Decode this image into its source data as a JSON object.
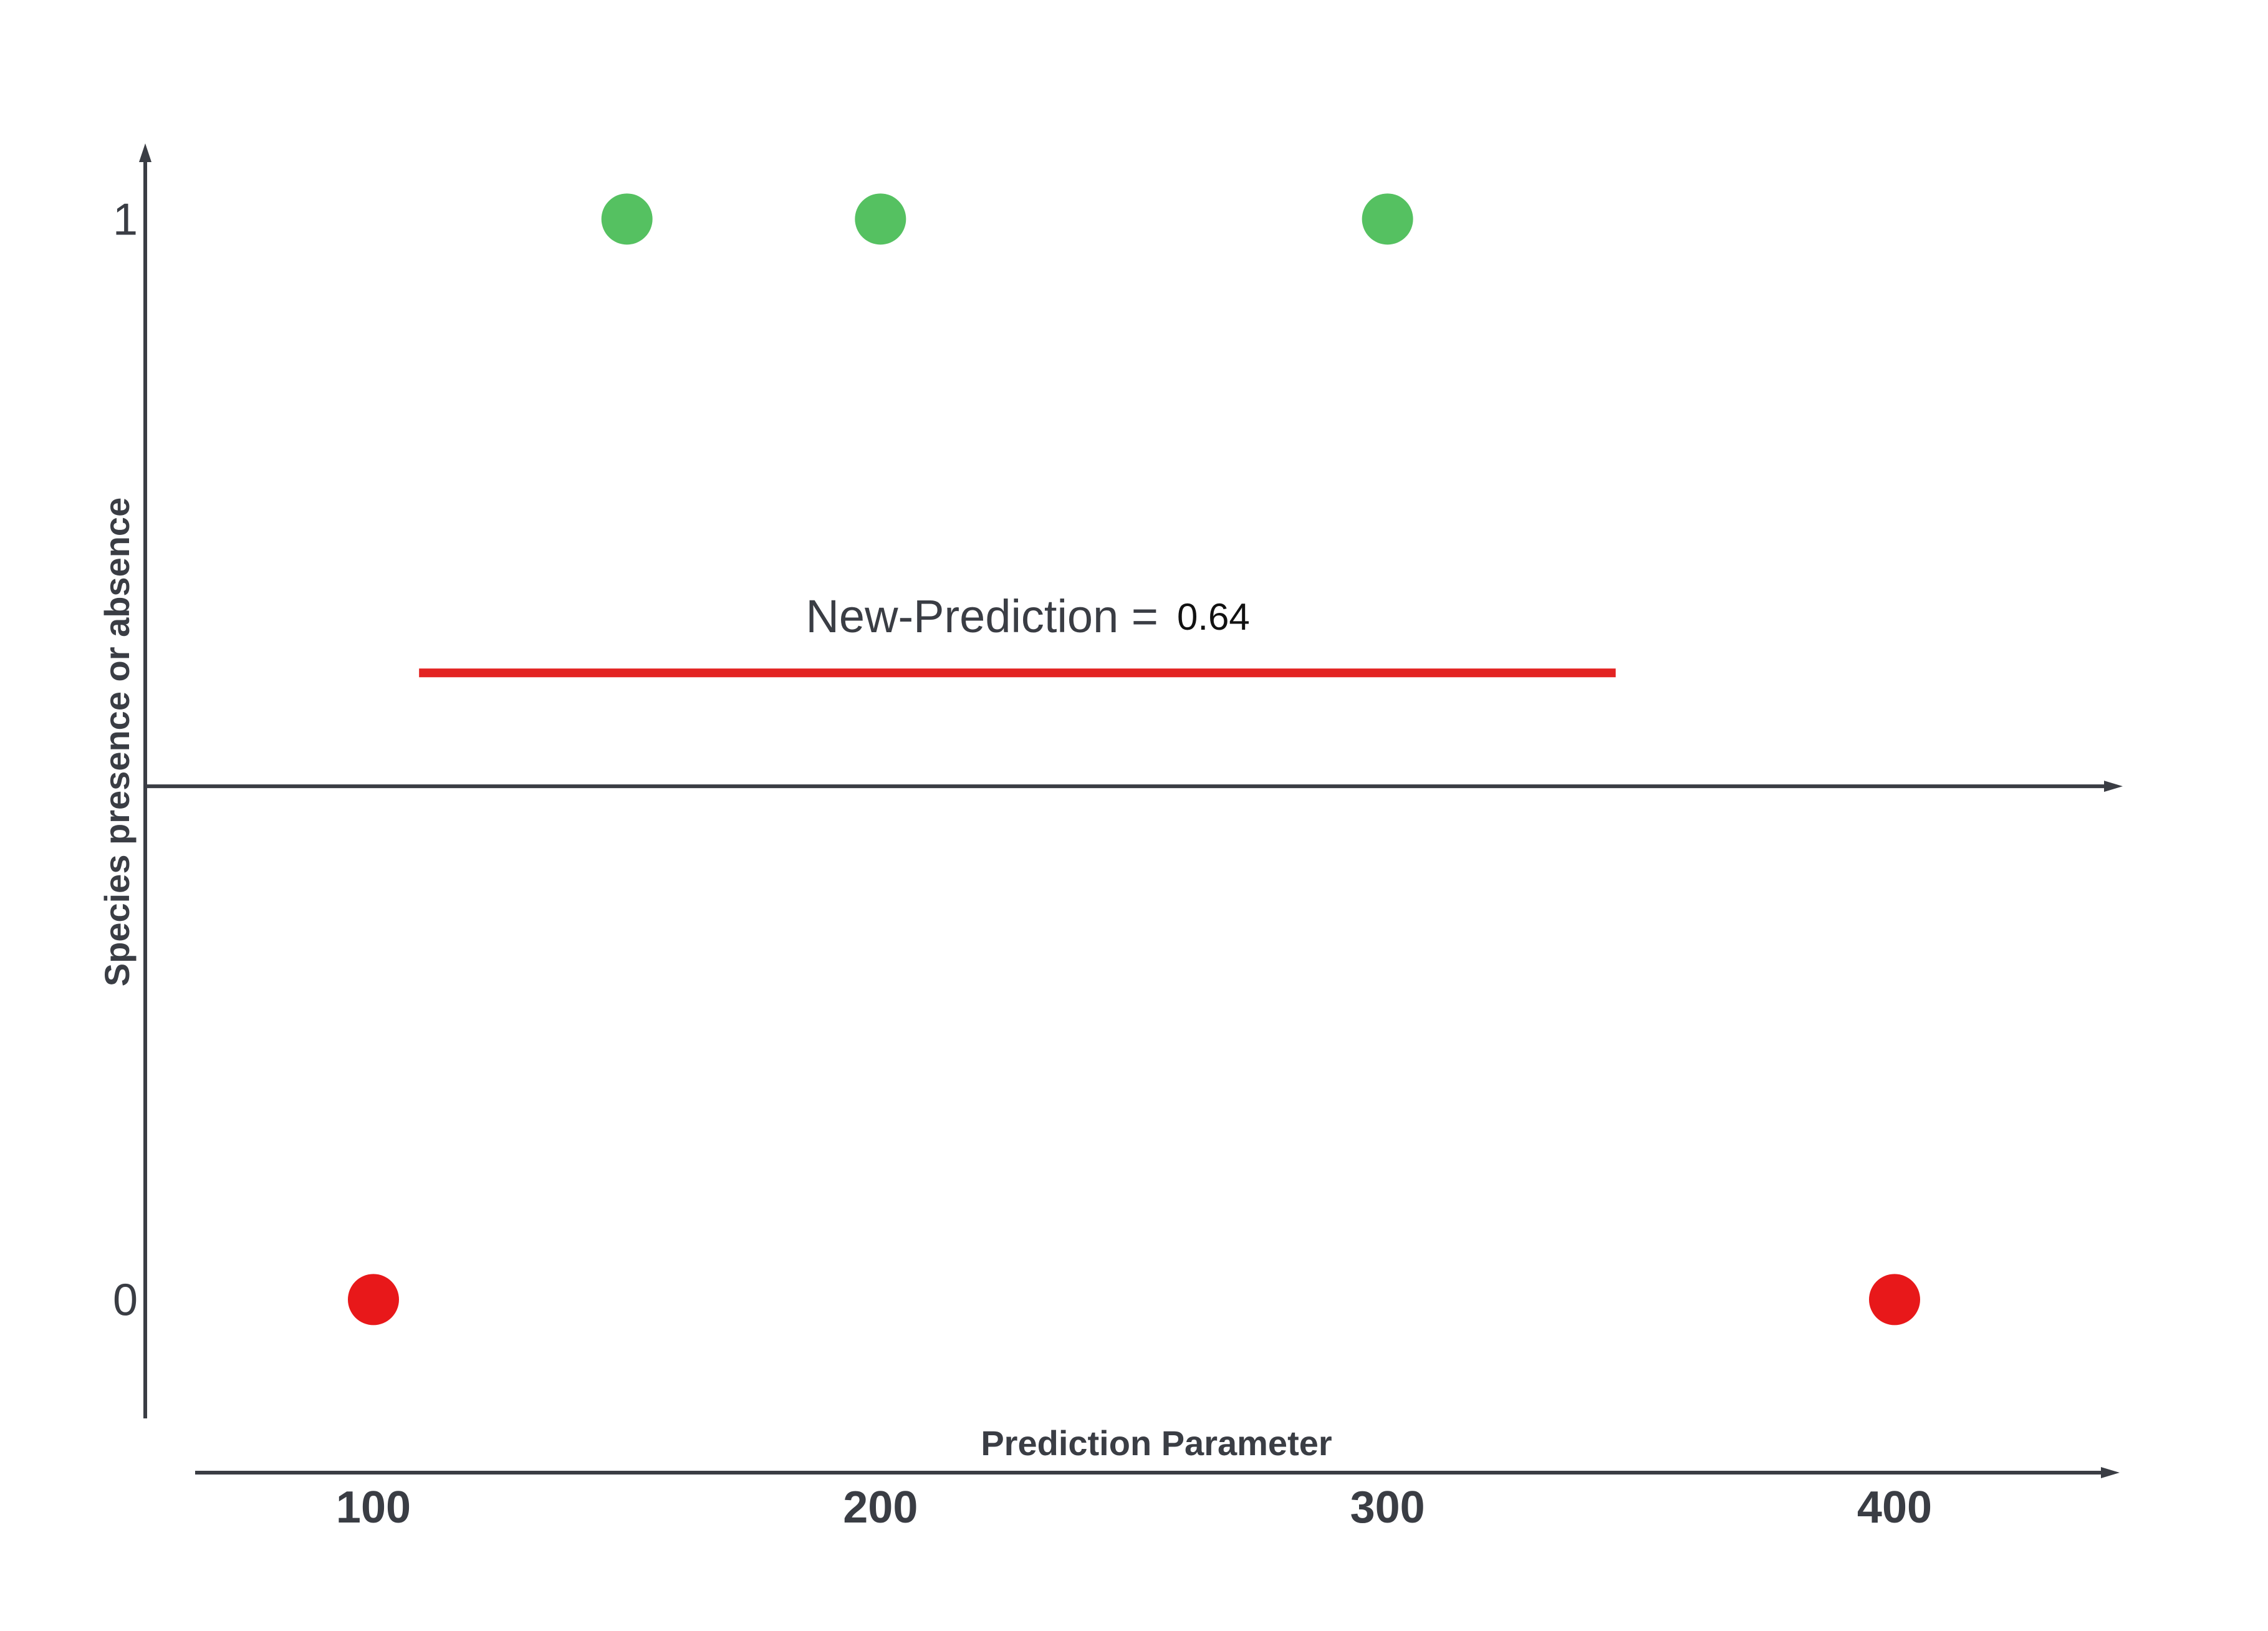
{
  "chart_data": {
    "type": "scatter",
    "title": "",
    "xlabel": "Prediction Parameter",
    "ylabel": "Species presence or absence",
    "x_ticks": [
      100,
      200,
      300,
      400
    ],
    "y_ticks": [
      0,
      1
    ],
    "xlim": [
      55,
      445
    ],
    "ylim": [
      -0.11,
      1.07
    ],
    "points": [
      {
        "x": 100,
        "y": 0,
        "color": "#e8181a"
      },
      {
        "x": 150,
        "y": 1,
        "color": "#55c161"
      },
      {
        "x": 200,
        "y": 1,
        "color": "#55c161"
      },
      {
        "x": 300,
        "y": 1,
        "color": "#55c161"
      },
      {
        "x": 400,
        "y": 0,
        "color": "#e8181a"
      }
    ],
    "threshold_line": {
      "y": 0.58,
      "x_start": 109,
      "x_end": 345,
      "color": "#e32322"
    },
    "midline_y": 0.475,
    "annotation": {
      "label": "New-Prediction =",
      "value": "0.64"
    },
    "legend": "none",
    "grid": false
  }
}
